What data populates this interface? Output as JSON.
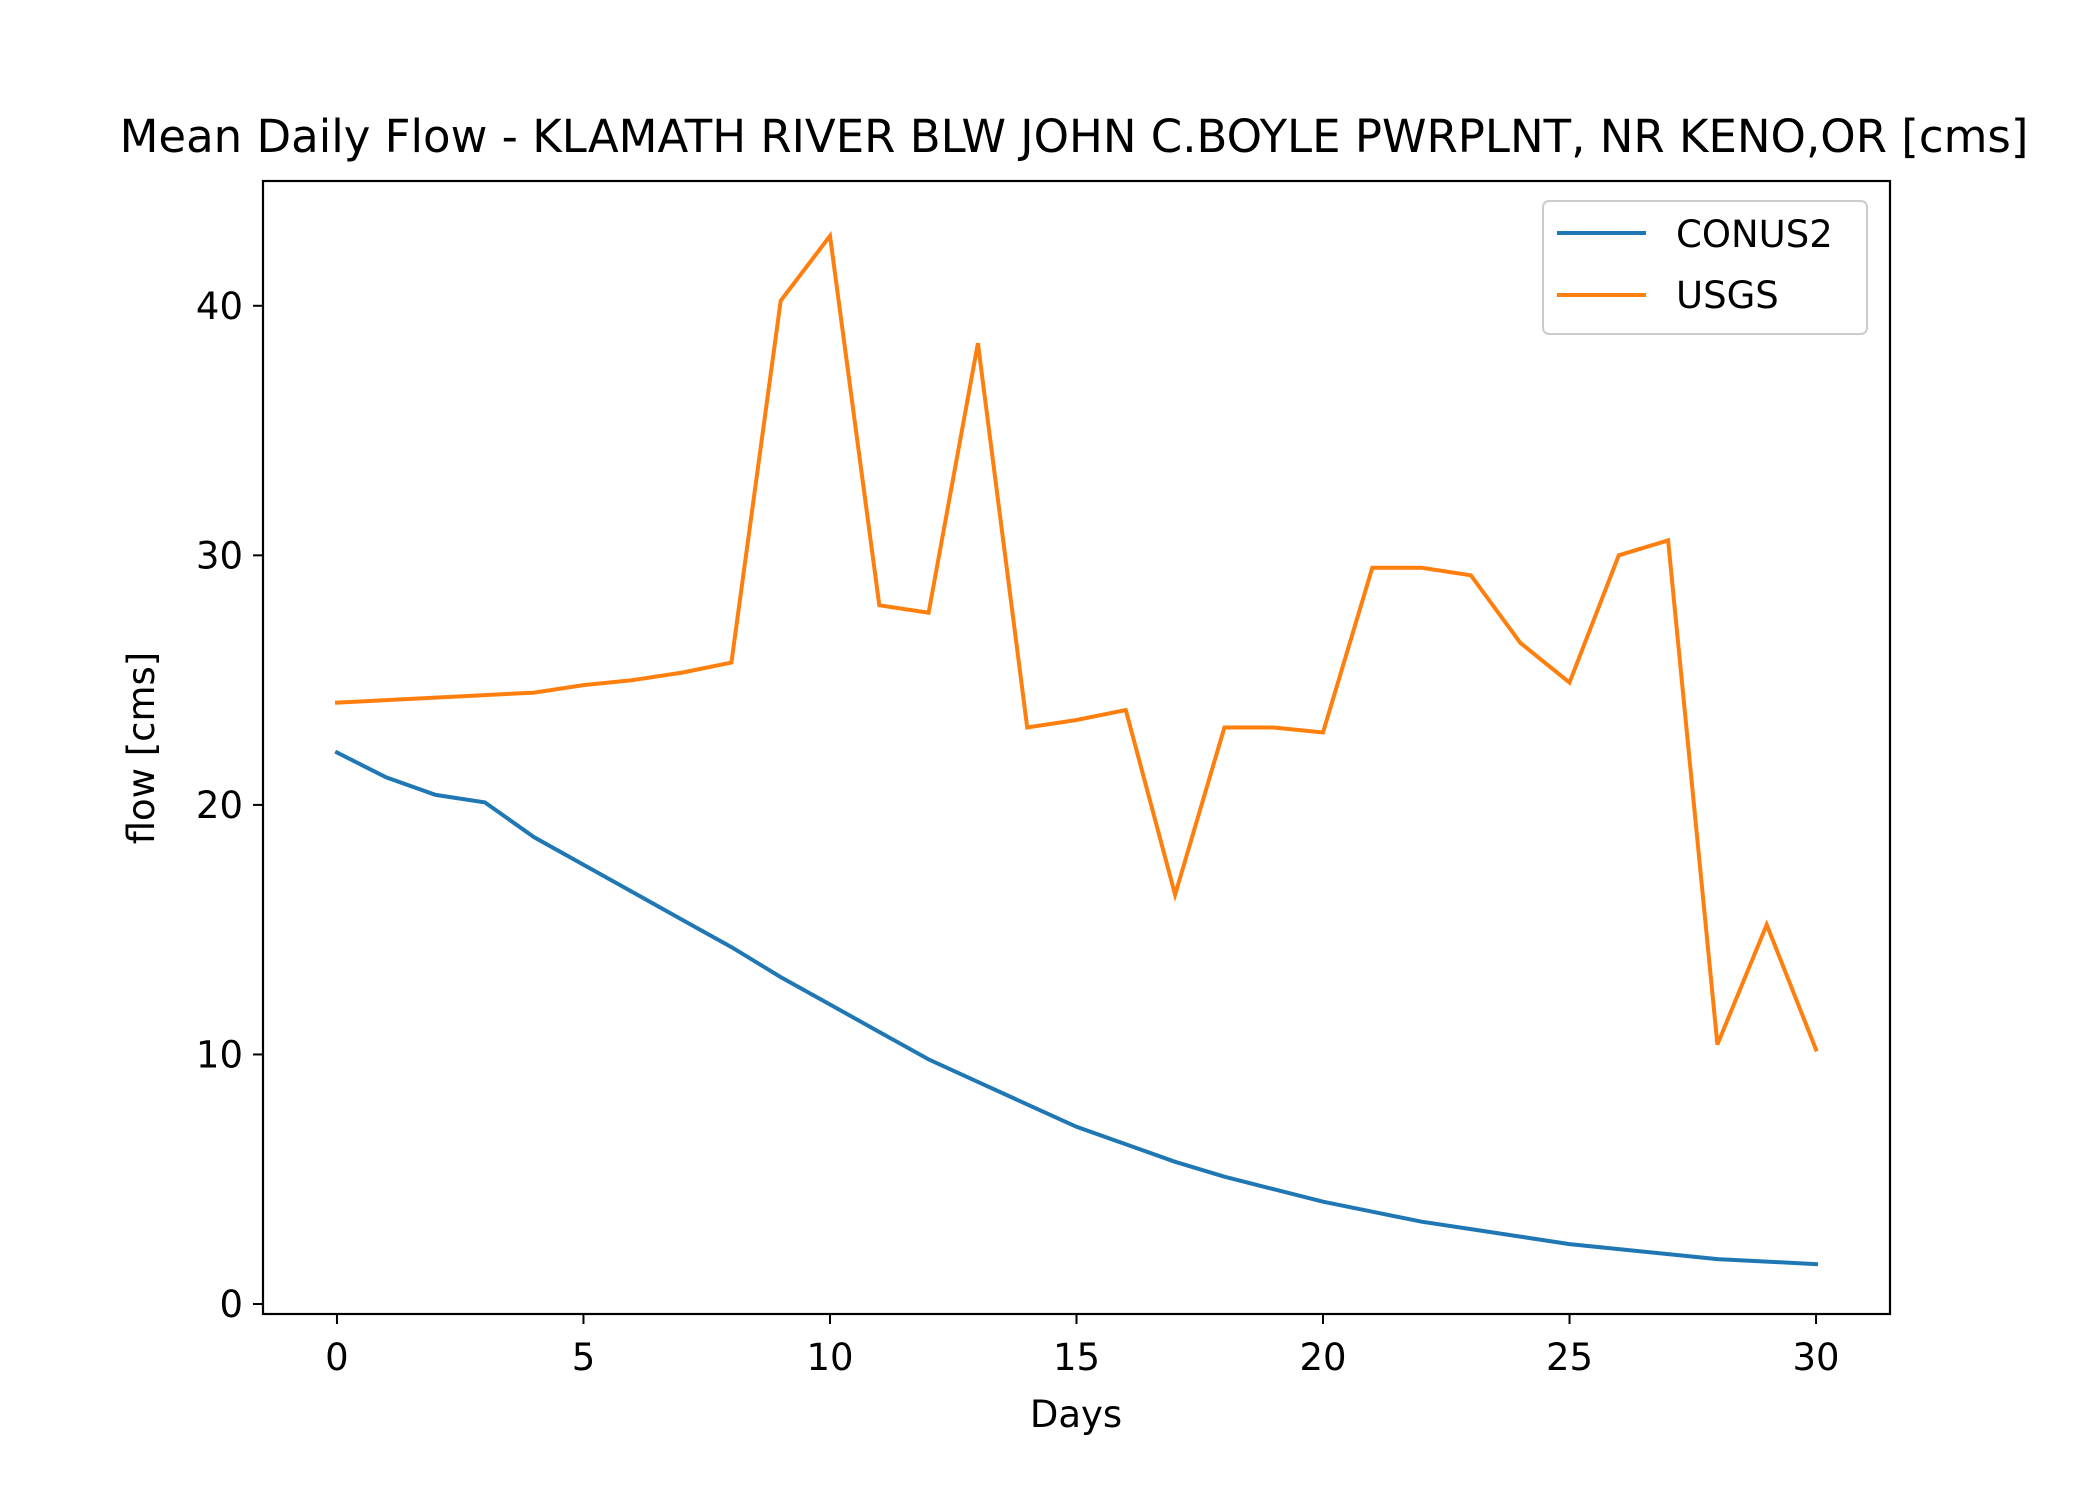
{
  "chart_data": {
    "type": "line",
    "title": "Mean Daily Flow - KLAMATH RIVER BLW JOHN C.BOYLE PWRPLNT, NR KENO,OR [cms]",
    "xlabel": "Days",
    "ylabel": "flow [cms]",
    "xlim": [
      -1.5,
      31.5
    ],
    "ylim": [
      -0.4,
      45
    ],
    "xticks": [
      0,
      5,
      10,
      15,
      20,
      25,
      30
    ],
    "yticks": [
      0,
      10,
      20,
      30,
      40
    ],
    "grid": false,
    "legend_position": "top-right",
    "x": [
      0,
      1,
      2,
      3,
      4,
      5,
      6,
      7,
      8,
      9,
      10,
      11,
      12,
      13,
      14,
      15,
      16,
      17,
      18,
      19,
      20,
      21,
      22,
      23,
      24,
      25,
      26,
      27,
      28,
      29,
      30
    ],
    "series": [
      {
        "name": "CONUS2",
        "color": "#1f77b4",
        "values": [
          22.1,
          21.1,
          20.4,
          20.1,
          18.7,
          17.6,
          16.5,
          15.4,
          14.3,
          13.1,
          12.0,
          10.9,
          9.8,
          8.9,
          8.0,
          7.1,
          6.4,
          5.7,
          5.1,
          4.6,
          4.1,
          3.7,
          3.3,
          3.0,
          2.7,
          2.4,
          2.2,
          2.0,
          1.8,
          1.7,
          1.6
        ]
      },
      {
        "name": "USGS",
        "color": "#ff7f0e",
        "values": [
          24.1,
          24.2,
          24.3,
          24.4,
          24.5,
          24.8,
          25.0,
          25.3,
          25.7,
          40.2,
          42.8,
          28.0,
          27.7,
          38.5,
          23.1,
          23.4,
          23.8,
          16.4,
          23.1,
          23.1,
          22.9,
          29.5,
          29.5,
          29.2,
          26.5,
          24.9,
          30.0,
          30.6,
          10.4,
          15.2,
          10.2
        ]
      }
    ]
  }
}
